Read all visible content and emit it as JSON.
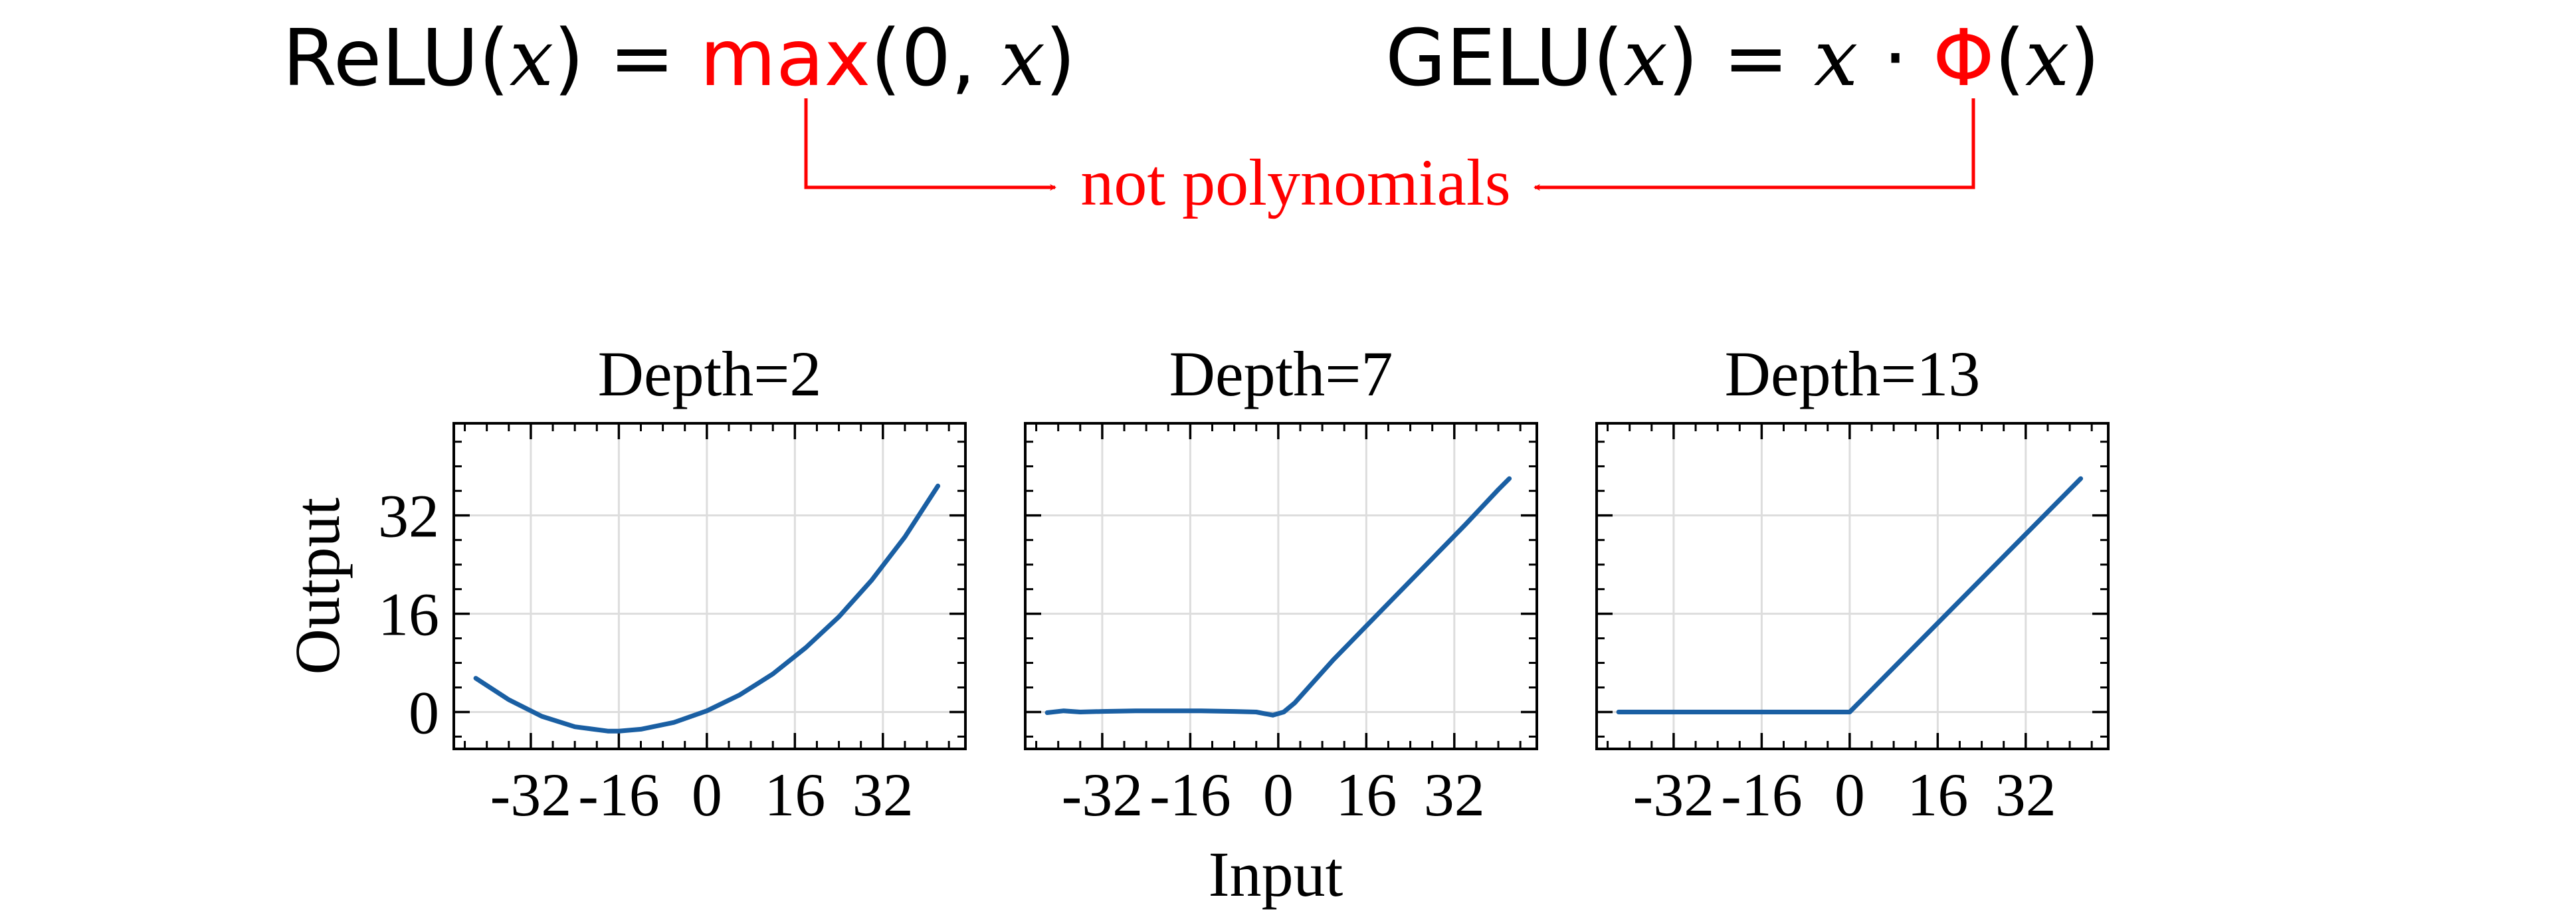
{
  "header": {
    "relu_formula": {
      "lhs": "ReLU",
      "var": "x",
      "eq": "=",
      "op": "max",
      "args_open": "(0,",
      "close": ")"
    },
    "gelu_formula": {
      "lhs": "GELU",
      "var": "x",
      "eq": "=",
      "dot": "·",
      "op": "Φ",
      "close": ")"
    },
    "annotation": "not polynomials"
  },
  "colors": {
    "accent": "#ff0000",
    "line": "#1a5fa3",
    "grid": "#dddddd",
    "text": "#000000"
  },
  "shared_axes": {
    "xlabel": "Input",
    "ylabel": "Output"
  },
  "chart_data": [
    {
      "type": "line",
      "title": "Depth=2",
      "xlim": [
        -46,
        47
      ],
      "ylim": [
        -6,
        47
      ],
      "xticks": [
        -32,
        -16,
        0,
        16,
        32
      ],
      "xtick_labels": [
        "-32",
        "-16",
        "0",
        "16",
        "32"
      ],
      "yticks": [
        0,
        16,
        32
      ],
      "ytick_labels": [
        "0",
        "16",
        "32"
      ],
      "grid": true,
      "series": [
        {
          "name": "Depth=2",
          "x": [
            -42,
            -36,
            -30,
            -24,
            -18,
            -16,
            -12,
            -6,
            0,
            6,
            12,
            18,
            24,
            30,
            36,
            42
          ],
          "y": [
            5.5,
            2.0,
            -0.7,
            -2.4,
            -3.1,
            -3.1,
            -2.8,
            -1.7,
            0.2,
            2.8,
            6.2,
            10.5,
            15.5,
            21.5,
            28.5,
            36.8
          ]
        }
      ]
    },
    {
      "type": "line",
      "title": "Depth=7",
      "xlim": [
        -46,
        47
      ],
      "ylim": [
        -6,
        47
      ],
      "xticks": [
        -32,
        -16,
        0,
        16,
        32
      ],
      "xtick_labels": [
        "-32",
        "-16",
        "0",
        "16",
        "32"
      ],
      "yticks": [
        0,
        16,
        32
      ],
      "ytick_labels": [
        "0",
        "16",
        "32"
      ],
      "grid": true,
      "series": [
        {
          "name": "Depth=7",
          "x": [
            -42,
            -39,
            -36,
            -32,
            -26,
            -20,
            -14,
            -8,
            -4,
            -1,
            1,
            3,
            6,
            10,
            16,
            22,
            28,
            34,
            40,
            42
          ],
          "y": [
            -0.1,
            0.2,
            0.0,
            0.1,
            0.2,
            0.2,
            0.2,
            0.1,
            0.0,
            -0.5,
            0.0,
            1.5,
            4.5,
            8.5,
            14.0,
            19.5,
            25.0,
            30.5,
            36.2,
            38.0
          ]
        }
      ]
    },
    {
      "type": "line",
      "title": "Depth=13",
      "xlim": [
        -46,
        47
      ],
      "ylim": [
        -6,
        47
      ],
      "xticks": [
        -32,
        -16,
        0,
        16,
        32
      ],
      "xtick_labels": [
        "-32",
        "-16",
        "0",
        "16",
        "32"
      ],
      "yticks": [
        0,
        16,
        32
      ],
      "ytick_labels": [
        "0",
        "16",
        "32"
      ],
      "grid": true,
      "series": [
        {
          "name": "Depth=13",
          "x": [
            -42,
            -20,
            0,
            42
          ],
          "y": [
            0.0,
            0.0,
            0.0,
            38.0
          ]
        }
      ]
    }
  ]
}
